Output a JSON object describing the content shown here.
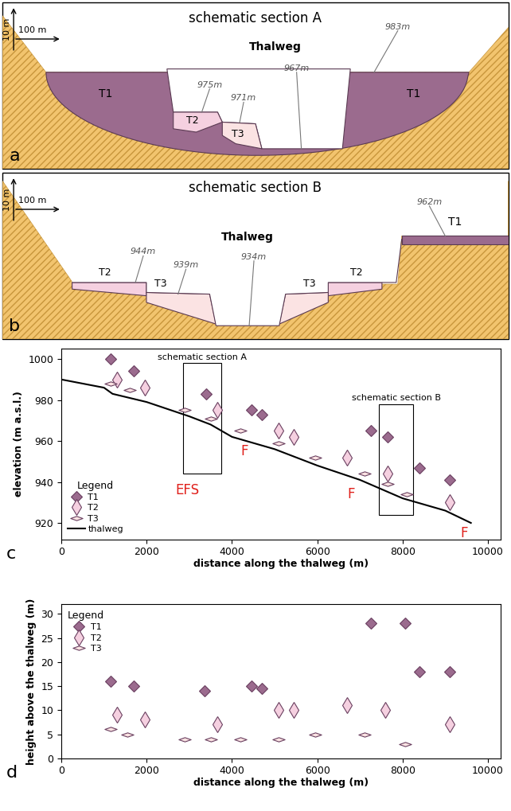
{
  "sections": [
    {
      "panel": "a",
      "title": "schematic section A",
      "scale_vertical": "10 m",
      "scale_horizontal": "100 m",
      "thalweg_label": "Thalweg",
      "thalweg_elevation": "967m",
      "terraces": [
        {
          "name": "T1",
          "elevation": "983m"
        },
        {
          "name": "T2",
          "elevation": "975m"
        },
        {
          "name": "T3",
          "elevation": "971m"
        }
      ]
    },
    {
      "panel": "b",
      "title": "schematic section B",
      "scale_vertical": "10 m",
      "scale_horizontal": "100 m",
      "thalweg_label": "Thalweg",
      "thalweg_elevation": "934m",
      "terraces": [
        {
          "name": "T1",
          "elevation": "962m"
        },
        {
          "name": "T2",
          "elevation": "944m"
        },
        {
          "name": "T3",
          "elevation": "939m"
        }
      ]
    }
  ],
  "chart_data": [
    {
      "type": "scatter",
      "panel_label": "c",
      "x_label": "distance along the thalweg (m)",
      "y_label": "elevation (m a.s.l.)",
      "xlim": [
        0,
        10300
      ],
      "ylim": [
        912,
        1005
      ],
      "xticks": [
        0,
        2000,
        4000,
        6000,
        8000,
        10000
      ],
      "yticks": [
        920,
        940,
        960,
        980,
        1000
      ],
      "legend": "lower left",
      "legend_title": "Legend",
      "series": [
        {
          "name": "T1",
          "type": "scatter",
          "marker": "diamond",
          "color": "#9b6b8e",
          "x": [
            1150,
            1700,
            3400,
            4450,
            4700,
            7250,
            7650,
            8400,
            9100
          ],
          "values": [
            1000,
            994,
            983,
            975,
            973,
            965,
            962,
            947,
            941
          ]
        },
        {
          "name": "T2",
          "type": "scatter",
          "marker": "thin_diamond",
          "color": "#f5d0e0",
          "x": [
            1300,
            1950,
            3650,
            5100,
            5450,
            6700,
            7650,
            9100
          ],
          "values": [
            990,
            986,
            975,
            965,
            962,
            952,
            944,
            930
          ]
        },
        {
          "name": "T3",
          "type": "scatter",
          "marker": "flat_diamond",
          "color": "#fbe3e3",
          "x": [
            1150,
            1600,
            2900,
            3500,
            4200,
            5100,
            5950,
            7100,
            7650,
            8100
          ],
          "values": [
            988,
            985,
            975,
            971,
            965,
            959,
            952,
            944,
            939,
            934
          ]
        },
        {
          "name": "thalweg",
          "type": "line",
          "line_style": "solid",
          "color": "#000000",
          "x": [
            0,
            1000,
            1200,
            2000,
            3000,
            3500,
            4000,
            5000,
            6000,
            7000,
            8000,
            9000,
            9600
          ],
          "values": [
            990,
            986,
            983,
            979,
            972,
            968,
            962,
            956,
            948,
            941,
            932,
            926,
            920
          ]
        }
      ],
      "boxes": [
        {
          "label": "schematic section A",
          "x": [
            2850,
            3750
          ],
          "y": [
            944,
            998
          ]
        },
        {
          "label": "schematic section B",
          "x": [
            7450,
            8250
          ],
          "y": [
            924,
            978
          ]
        }
      ],
      "annotations": [
        {
          "text": "EFS",
          "x": 2950,
          "y": 936,
          "color": "#e0201b"
        },
        {
          "text": "F",
          "x": 4300,
          "y": 955,
          "color": "#e0201b"
        },
        {
          "text": "F",
          "x": 6800,
          "y": 934,
          "color": "#e0201b"
        },
        {
          "text": "F",
          "x": 9450,
          "y": 915,
          "color": "#e0201b"
        }
      ]
    },
    {
      "type": "scatter",
      "panel_label": "d",
      "x_label": "distance along the thalweg (m)",
      "y_label": "height above the thalweg (m)",
      "xlim": [
        0,
        10300
      ],
      "ylim": [
        0,
        32
      ],
      "xticks": [
        0,
        2000,
        4000,
        6000,
        8000,
        10000
      ],
      "yticks": [
        0,
        5,
        10,
        15,
        20,
        25,
        30
      ],
      "legend": "upper left",
      "legend_title": "Legend",
      "series": [
        {
          "name": "T1",
          "type": "scatter",
          "marker": "diamond",
          "color": "#9b6b8e",
          "x": [
            1150,
            1700,
            3350,
            4450,
            4700,
            7250,
            8050,
            8400,
            9100
          ],
          "values": [
            16,
            15,
            14,
            15,
            14.5,
            28,
            28,
            18,
            18
          ]
        },
        {
          "name": "T2",
          "type": "scatter",
          "marker": "thin_diamond",
          "color": "#f5d0e0",
          "x": [
            1300,
            1950,
            3650,
            5100,
            5450,
            6700,
            7600,
            9100
          ],
          "values": [
            9,
            8,
            7,
            10,
            10,
            11,
            10,
            7
          ]
        },
        {
          "name": "T3",
          "type": "scatter",
          "marker": "flat_diamond",
          "color": "#fbe3e3",
          "x": [
            1150,
            1550,
            2900,
            3500,
            4200,
            5100,
            5950,
            7100,
            8050
          ],
          "values": [
            6,
            5,
            4,
            4,
            4,
            4,
            5,
            5,
            3
          ]
        }
      ]
    }
  ]
}
